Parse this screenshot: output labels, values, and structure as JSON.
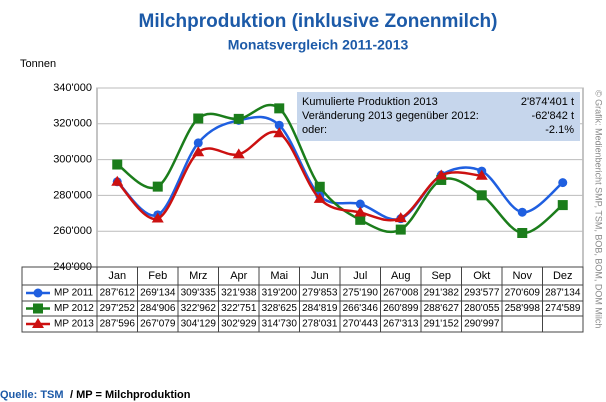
{
  "chart_data": {
    "type": "line",
    "title": "Milchproduktion (inklusive Zonenmilch)",
    "subtitle": "Monatsvergleich 2011-2013",
    "y_label": "Tonnen",
    "categories": [
      "Jan",
      "Feb",
      "Mrz",
      "Apr",
      "Mai",
      "Jun",
      "Jul",
      "Aug",
      "Sep",
      "Okt",
      "Nov",
      "Dez"
    ],
    "ylim": [
      240000,
      340000
    ],
    "yticks": [
      {
        "value": 240000,
        "label": "240'000"
      },
      {
        "value": 260000,
        "label": "260'000"
      },
      {
        "value": 280000,
        "label": "280'000"
      },
      {
        "value": 300000,
        "label": "300'000"
      },
      {
        "value": 320000,
        "label": "320'000"
      },
      {
        "value": 340000,
        "label": "340'000"
      }
    ],
    "grid": true,
    "series": [
      {
        "name": "MP 2011",
        "color": "#1f5fe0",
        "marker": "circle",
        "values": [
          287612,
          269134,
          309335,
          321938,
          319200,
          279853,
          275190,
          267008,
          291382,
          293577,
          270609,
          287134
        ],
        "value_labels": [
          "287'612",
          "269'134",
          "309'335",
          "321'938",
          "319'200",
          "279'853",
          "275'190",
          "267'008",
          "291'382",
          "293'577",
          "270'609",
          "287'134"
        ]
      },
      {
        "name": "MP 2012",
        "color": "#1b7d1b",
        "marker": "square",
        "values": [
          297252,
          284906,
          322962,
          322751,
          328625,
          284819,
          266346,
          260899,
          288627,
          280055,
          258998,
          274589
        ],
        "value_labels": [
          "297'252",
          "284'906",
          "322'962",
          "322'751",
          "328'625",
          "284'819",
          "266'346",
          "260'899",
          "288'627",
          "280'055",
          "258'998",
          "274'589"
        ]
      },
      {
        "name": "MP 2013",
        "color": "#cc1111",
        "marker": "triangle",
        "values": [
          287596,
          267079,
          304129,
          302929,
          314730,
          278031,
          270443,
          267313,
          291152,
          290997,
          null,
          null
        ],
        "value_labels": [
          "287'596",
          "267'079",
          "304'129",
          "302'929",
          "314'730",
          "278'031",
          "270'443",
          "267'313",
          "291'152",
          "290'997",
          "",
          ""
        ]
      }
    ],
    "info_box": [
      [
        "Kumulierte Produktion 2013",
        "2'874'401 t"
      ],
      [
        "Veränderung 2013 gegenüber 2012:",
        "-62'842 t"
      ],
      [
        "oder:",
        "-2.1%"
      ]
    ],
    "source_label": "Quelle: TSM",
    "source_note": "/ MP = Milchproduktion",
    "credit": "© Grafik: Medienbericht SMP, TSM, BOB, BOM, DOM Milch"
  }
}
